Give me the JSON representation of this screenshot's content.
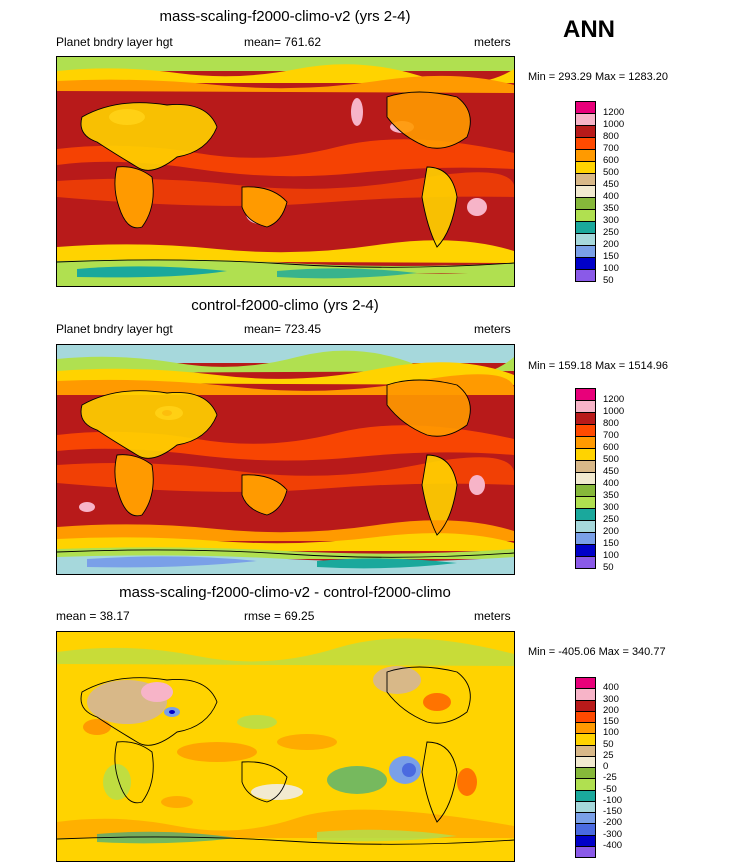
{
  "season": "ANN",
  "panels": [
    {
      "title": "mass-scaling-f2000-climo-v2 (yrs 2-4)",
      "left_label": "Planet bndry layer hgt",
      "center_label": "mean= 761.62",
      "units": "meters",
      "minmax": "Min = 293.29 Max = 1283.20",
      "levels": [
        "1200",
        "1000",
        "800",
        "700",
        "600",
        "500",
        "450",
        "400",
        "350",
        "300",
        "250",
        "200",
        "150",
        "100",
        "50"
      ],
      "colors": [
        "#e8007a",
        "#f7b4c8",
        "#b81a1a",
        "#ff4a00",
        "#ff9a00",
        "#ffd300",
        "#d8b888",
        "#f2ead0",
        "#86b83a",
        "#b0e050",
        "#1aa89c",
        "#a6d8dc",
        "#7aa0e8",
        "#0000c8",
        "#8a5ae8"
      ]
    },
    {
      "title": "control-f2000-climo (yrs 2-4)",
      "left_label": "Planet bndry layer hgt",
      "center_label": "mean= 723.45",
      "units": "meters",
      "minmax": "Min = 159.18 Max = 1514.96",
      "levels": [
        "1200",
        "1000",
        "800",
        "700",
        "600",
        "500",
        "450",
        "400",
        "350",
        "300",
        "250",
        "200",
        "150",
        "100",
        "50"
      ],
      "colors": [
        "#e8007a",
        "#f7b4c8",
        "#b81a1a",
        "#ff4a00",
        "#ff9a00",
        "#ffd300",
        "#d8b888",
        "#f2ead0",
        "#86b83a",
        "#b0e050",
        "#1aa89c",
        "#a6d8dc",
        "#7aa0e8",
        "#0000c8",
        "#8a5ae8"
      ]
    },
    {
      "title": "mass-scaling-f2000-climo-v2 - control-f2000-climo",
      "left_label": "mean =  38.17",
      "center_label": "rmse =  69.25",
      "units": "meters",
      "minmax": "Min = -405.06 Max = 340.77",
      "levels": [
        "400",
        "300",
        "200",
        "150",
        "100",
        "50",
        "25",
        "0",
        "-25",
        "-50",
        "-100",
        "-150",
        "-200",
        "-300",
        "-400"
      ],
      "colors": [
        "#e8007a",
        "#f7b4c8",
        "#b81a1a",
        "#ff4a00",
        "#ff9a00",
        "#ffd300",
        "#d8b888",
        "#f2ead0",
        "#86b83a",
        "#b0e050",
        "#1aa89c",
        "#a6d8dc",
        "#7aa0e8",
        "#4a6ae0",
        "#0000c8",
        "#8a5ae8"
      ]
    }
  ]
}
